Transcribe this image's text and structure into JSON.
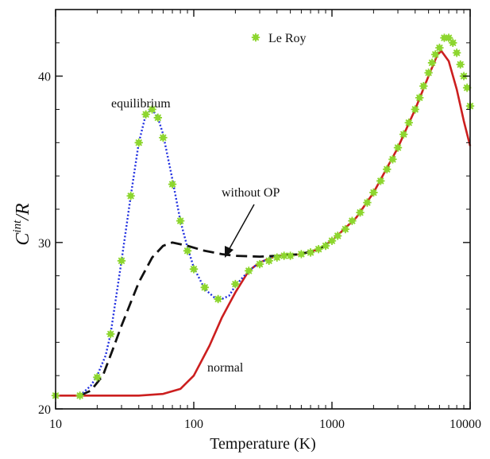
{
  "chart_data": {
    "type": "line",
    "xscale": "log",
    "xlim": [
      10,
      10000
    ],
    "ylim": [
      20,
      44
    ],
    "x_ticks": [
      10,
      100,
      1000,
      10000
    ],
    "x_tick_labels": [
      "10",
      "100",
      "1000",
      "10000"
    ],
    "y_ticks": [
      20,
      30,
      40
    ],
    "y_tick_labels": [
      "20",
      "30",
      "40"
    ],
    "xlabel": "Temperature (K)",
    "ylabel_main": "C",
    "ylabel_sup": "int",
    "ylabel_rest": "/R",
    "grid": false,
    "legend": {
      "position": "top-center",
      "entries": [
        {
          "label": "Le Roy",
          "marker": "star",
          "color": "#8dd62f"
        }
      ]
    },
    "annotations": {
      "equilibrium": "equilibrium",
      "without_op": "without OP",
      "normal": "normal"
    },
    "series": [
      {
        "key": "normal",
        "style": "solid",
        "color": "#cc1f1f",
        "points": [
          [
            10,
            20.8
          ],
          [
            20,
            20.8
          ],
          [
            40,
            20.8
          ],
          [
            60,
            20.9
          ],
          [
            80,
            21.2
          ],
          [
            100,
            22.0
          ],
          [
            130,
            23.8
          ],
          [
            160,
            25.5
          ],
          [
            200,
            27.0
          ],
          [
            250,
            28.3
          ],
          [
            300,
            28.8
          ],
          [
            400,
            29.2
          ],
          [
            500,
            29.25
          ],
          [
            600,
            29.3
          ],
          [
            800,
            29.6
          ],
          [
            1000,
            30.1
          ],
          [
            1500,
            31.5
          ],
          [
            2000,
            33.0
          ],
          [
            3000,
            35.7
          ],
          [
            4000,
            38.0
          ],
          [
            5000,
            40.0
          ],
          [
            5800,
            41.3
          ],
          [
            6200,
            41.5
          ],
          [
            7000,
            40.9
          ],
          [
            8000,
            39.2
          ],
          [
            9000,
            37.3
          ],
          [
            10000,
            35.8
          ]
        ]
      },
      {
        "key": "without_op",
        "style": "dashed",
        "color": "#111111",
        "points": [
          [
            15,
            20.8
          ],
          [
            18,
            21.1
          ],
          [
            22,
            22.0
          ],
          [
            26,
            23.6
          ],
          [
            30,
            25.0
          ],
          [
            35,
            26.4
          ],
          [
            40,
            27.6
          ],
          [
            50,
            29.1
          ],
          [
            60,
            29.8
          ],
          [
            70,
            30.0
          ],
          [
            90,
            29.8
          ],
          [
            120,
            29.5
          ],
          [
            160,
            29.3
          ],
          [
            200,
            29.2
          ],
          [
            300,
            29.15
          ],
          [
            400,
            29.2
          ],
          [
            600,
            29.3
          ],
          [
            800,
            29.6
          ],
          [
            1000,
            30.1
          ]
        ]
      },
      {
        "key": "equilibrium",
        "style": "dotted",
        "color": "#1f2ee0",
        "points": [
          [
            15,
            20.8
          ],
          [
            18,
            21.4
          ],
          [
            20,
            22.0
          ],
          [
            23,
            23.2
          ],
          [
            25,
            24.5
          ],
          [
            30,
            28.9
          ],
          [
            35,
            32.8
          ],
          [
            40,
            36.0
          ],
          [
            45,
            37.7
          ],
          [
            50,
            38.0
          ],
          [
            55,
            37.5
          ],
          [
            60,
            36.5
          ],
          [
            70,
            33.8
          ],
          [
            80,
            31.3
          ],
          [
            90,
            29.7
          ],
          [
            100,
            28.5
          ],
          [
            120,
            27.2
          ],
          [
            150,
            26.5
          ],
          [
            180,
            26.8
          ],
          [
            200,
            27.4
          ],
          [
            250,
            28.3
          ],
          [
            300,
            28.8
          ],
          [
            400,
            29.2
          ]
        ]
      },
      {
        "key": "le_roy",
        "style": "markers",
        "marker": "star",
        "color": "#8dd62f",
        "points": [
          [
            10,
            20.8
          ],
          [
            15,
            20.8
          ],
          [
            20,
            21.9
          ],
          [
            25,
            24.5
          ],
          [
            30,
            28.9
          ],
          [
            35,
            32.8
          ],
          [
            40,
            36.0
          ],
          [
            45,
            37.7
          ],
          [
            50,
            38.0
          ],
          [
            55,
            37.5
          ],
          [
            60,
            36.3
          ],
          [
            70,
            33.5
          ],
          [
            80,
            31.3
          ],
          [
            90,
            29.5
          ],
          [
            100,
            28.4
          ],
          [
            120,
            27.3
          ],
          [
            150,
            26.6
          ],
          [
            200,
            27.5
          ],
          [
            250,
            28.3
          ],
          [
            300,
            28.7
          ],
          [
            350,
            28.9
          ],
          [
            400,
            29.1
          ],
          [
            450,
            29.2
          ],
          [
            500,
            29.2
          ],
          [
            600,
            29.3
          ],
          [
            700,
            29.4
          ],
          [
            800,
            29.6
          ],
          [
            900,
            29.8
          ],
          [
            1000,
            30.1
          ],
          [
            1100,
            30.4
          ],
          [
            1250,
            30.8
          ],
          [
            1400,
            31.3
          ],
          [
            1600,
            31.8
          ],
          [
            1800,
            32.4
          ],
          [
            2000,
            33.0
          ],
          [
            2250,
            33.7
          ],
          [
            2500,
            34.4
          ],
          [
            2750,
            35.0
          ],
          [
            3000,
            35.7
          ],
          [
            3300,
            36.5
          ],
          [
            3600,
            37.2
          ],
          [
            4000,
            38.0
          ],
          [
            4300,
            38.7
          ],
          [
            4600,
            39.4
          ],
          [
            5000,
            40.2
          ],
          [
            5300,
            40.8
          ],
          [
            5600,
            41.3
          ],
          [
            6000,
            41.7
          ],
          [
            6500,
            42.3
          ],
          [
            7000,
            42.3
          ],
          [
            7500,
            42.0
          ],
          [
            8000,
            41.4
          ],
          [
            8500,
            40.7
          ],
          [
            9000,
            40.0
          ],
          [
            9500,
            39.3
          ],
          [
            10000,
            38.2
          ]
        ]
      }
    ]
  }
}
